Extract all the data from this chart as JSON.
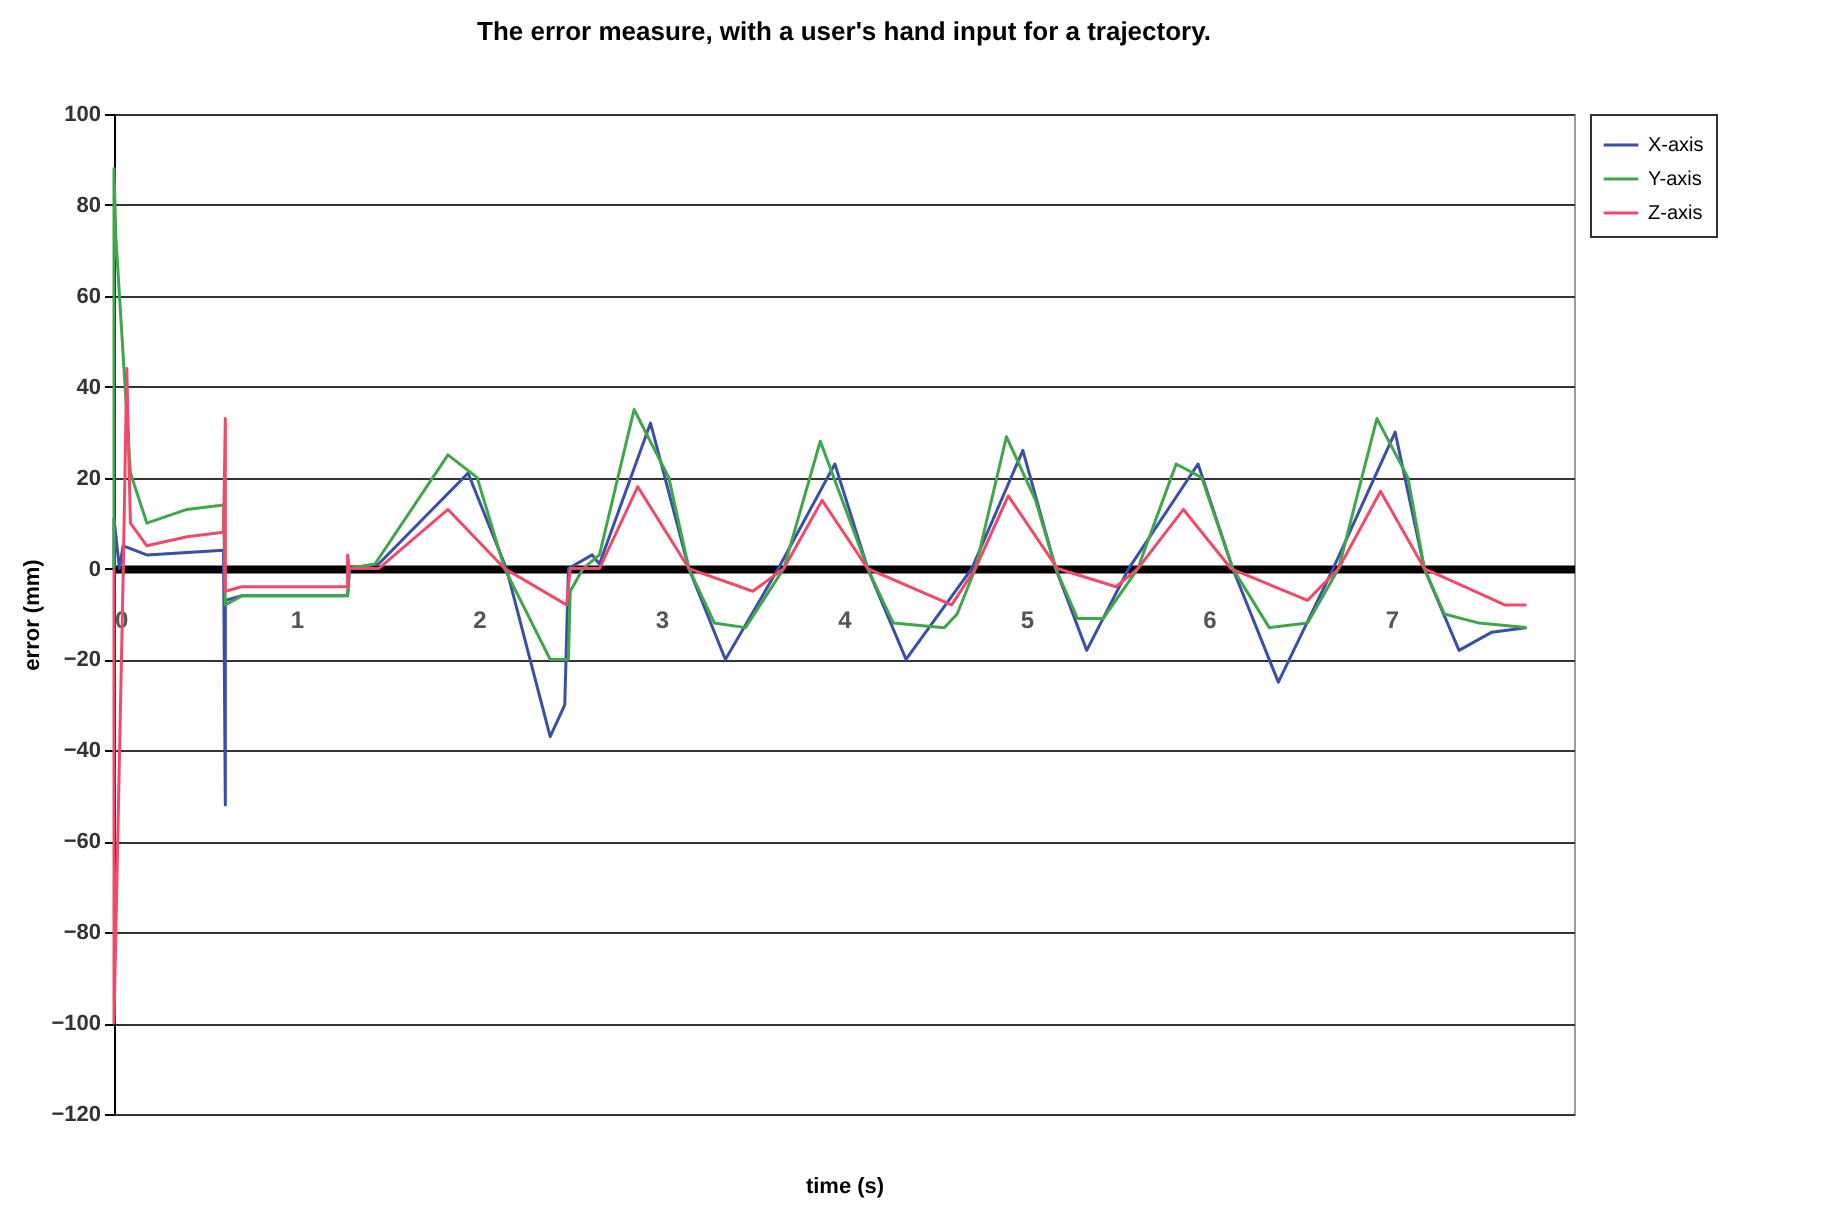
{
  "chart_data": {
    "type": "line",
    "title": "The error measure, with a user's hand input for a trajectory.",
    "xlabel": "time (s)",
    "ylabel": "error (mm)",
    "xlim": [
      0,
      8
    ],
    "xticks": [
      0,
      1,
      2,
      3,
      4,
      5,
      6,
      7
    ],
    "ylim": [
      -120,
      100
    ],
    "yticks": [
      -120,
      -100,
      -80,
      -60,
      -40,
      -20,
      0,
      20,
      40,
      60,
      80,
      100
    ],
    "grid": "y",
    "legend": "right",
    "series": [
      {
        "name": "X-axis",
        "color": "#3a4fa8",
        "x": [
          0,
          0,
          0.03,
          0.05,
          0.18,
          0.6,
          0.61,
          0.61,
          0.7,
          1.28,
          1.29,
          1.45,
          1.94,
          2.15,
          2.39,
          2.47,
          2.49,
          2.62,
          2.66,
          2.94,
          3.15,
          3.35,
          3.64,
          3.95,
          4.13,
          4.34,
          4.7,
          4.98,
          5.16,
          5.33,
          5.56,
          5.94,
          6.13,
          6.38,
          6.68,
          7.02,
          7.18,
          7.37,
          7.55,
          7.74
        ],
        "values": [
          0,
          11,
          0,
          5,
          3,
          4,
          -52,
          -7,
          -6,
          -6,
          0,
          1,
          21,
          0,
          -37,
          -30,
          0,
          3,
          1,
          32,
          0,
          -20,
          0,
          23,
          0,
          -20,
          0,
          26,
          0,
          -18,
          0,
          23,
          0,
          -25,
          0,
          30,
          0,
          -18,
          -14,
          -13
        ]
      },
      {
        "name": "Y-axis",
        "color": "#3fa64a",
        "x": [
          0,
          0,
          0.01,
          0.09,
          0.18,
          0.4,
          0.6,
          0.61,
          0.7,
          1.28,
          1.29,
          1.43,
          1.83,
          1.99,
          2.14,
          2.39,
          2.49,
          2.5,
          2.57,
          2.66,
          2.85,
          3.04,
          3.15,
          3.29,
          3.46,
          3.67,
          3.87,
          4.13,
          4.27,
          4.55,
          4.62,
          4.72,
          4.89,
          5.05,
          5.16,
          5.28,
          5.42,
          5.61,
          5.82,
          5.96,
          6.13,
          6.33,
          6.54,
          6.71,
          6.92,
          7.09,
          7.18,
          7.29,
          7.48,
          7.74
        ],
        "values": [
          0,
          88,
          73,
          21,
          10,
          13,
          14,
          -8,
          -6,
          -6,
          0,
          1,
          25,
          20,
          0,
          -20,
          -20,
          -5,
          0,
          3,
          35,
          20,
          0,
          -12,
          -13,
          0,
          28,
          0,
          -12,
          -13,
          -10,
          0,
          29,
          15,
          0,
          -11,
          -11,
          0,
          23,
          20,
          0,
          -13,
          -12,
          0,
          33,
          20,
          0,
          -10,
          -12,
          -13
        ]
      },
      {
        "name": "Z-axis",
        "color": "#f04a6a",
        "x": [
          0,
          0,
          0.05,
          0.07,
          0.09,
          0.18,
          0.4,
          0.6,
          0.61,
          0.61,
          0.7,
          1.28,
          1.28,
          1.29,
          1.45,
          1.83,
          2.14,
          2.48,
          2.5,
          2.66,
          2.87,
          3.15,
          3.5,
          3.67,
          3.88,
          4.13,
          4.59,
          4.72,
          4.9,
          5.17,
          5.49,
          5.61,
          5.86,
          6.12,
          6.54,
          6.71,
          6.94,
          7.18,
          7.4,
          7.62,
          7.74
        ],
        "values": [
          0,
          -100,
          -2,
          44,
          10,
          5,
          7,
          8,
          33,
          -5,
          -4,
          -4,
          3,
          0,
          0,
          13,
          0,
          -8,
          0,
          0,
          18,
          0,
          -5,
          0,
          15,
          0,
          -8,
          0,
          16,
          0,
          -4,
          0,
          13,
          0,
          -7,
          0,
          17,
          0,
          -4,
          -8,
          -8
        ]
      }
    ]
  }
}
